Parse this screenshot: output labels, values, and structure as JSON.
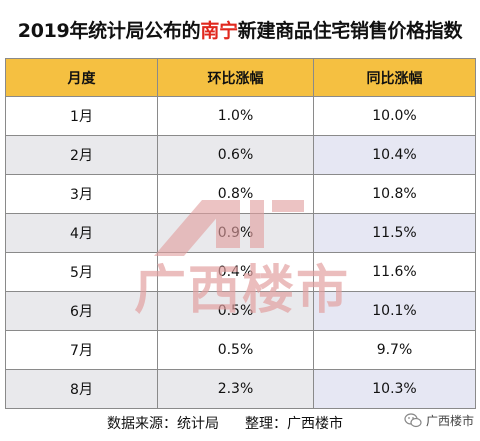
{
  "title": {
    "prefix": "2019年统计局公布的",
    "highlight": "南宁",
    "suffix": "新建商品住宅销售价格指数",
    "highlight_color": "#e0281e"
  },
  "table": {
    "header_bg": "#f5c041",
    "headers": [
      "月度",
      "环比涨幅",
      "同比涨幅"
    ],
    "rows": [
      [
        "1月",
        "1.0%",
        "10.0%"
      ],
      [
        "2月",
        "0.6%",
        "10.4%"
      ],
      [
        "3月",
        "0.8%",
        "10.8%"
      ],
      [
        "4月",
        "0.9%",
        "11.5%"
      ],
      [
        "5月",
        "0.4%",
        "11.6%"
      ],
      [
        "6月",
        "0.5%",
        "10.1%"
      ],
      [
        "7月",
        "0.5%",
        "9.7%"
      ],
      [
        "8月",
        "2.3%",
        "10.3%"
      ]
    ]
  },
  "watermark": {
    "text": "广西楼市",
    "color": "#e29f9f"
  },
  "footer": {
    "source": "数据来源：统计局",
    "editor": "整理：广西楼市",
    "brand_icon": "wechat-icon",
    "brand_text": "广西楼市"
  }
}
